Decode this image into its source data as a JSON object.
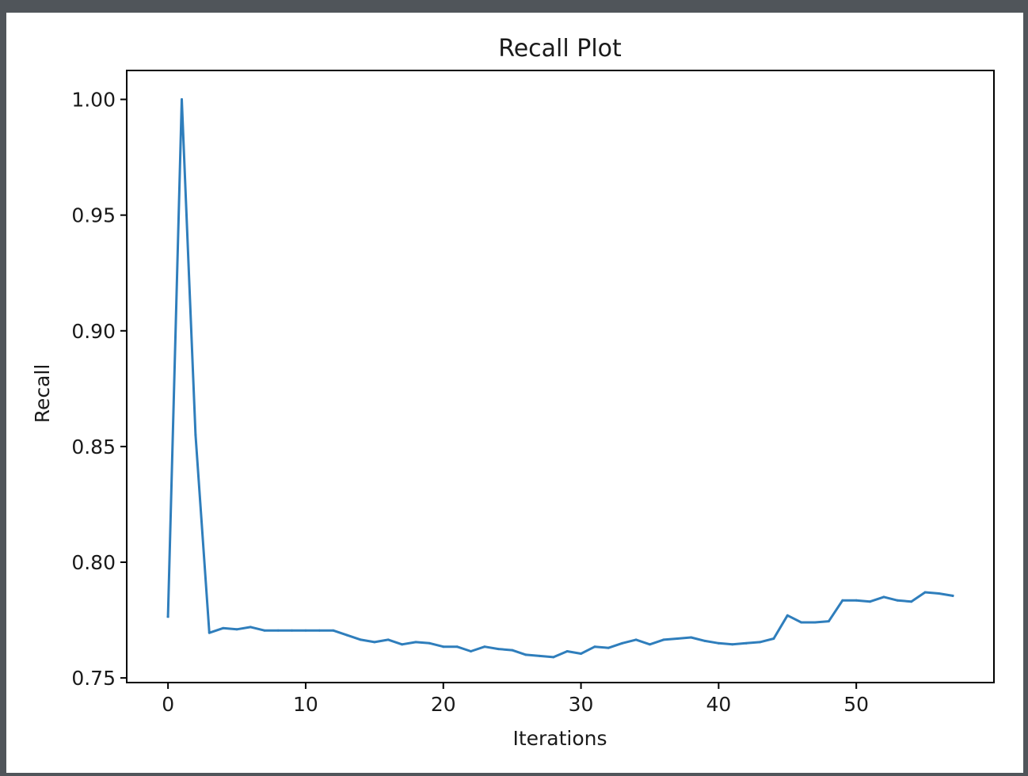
{
  "colors": {
    "background": "#50555a",
    "figure": "#ffffff",
    "line": "#2f7ebc",
    "axes": "#000000"
  },
  "chart_data": {
    "type": "line",
    "title": "Recall Plot",
    "xlabel": "Iterations",
    "ylabel": "Recall",
    "xlim": [
      -3.0,
      60.0
    ],
    "ylim": [
      0.748,
      1.0125
    ],
    "xticks": [
      0,
      10,
      20,
      30,
      40,
      50
    ],
    "xtick_labels": [
      "0",
      "10",
      "20",
      "30",
      "40",
      "50"
    ],
    "yticks": [
      0.75,
      0.8,
      0.85,
      0.9,
      0.95,
      1.0
    ],
    "ytick_labels": [
      "0.75",
      "0.80",
      "0.85",
      "0.90",
      "0.95",
      "1.00"
    ],
    "grid": false,
    "series": [
      {
        "x": [
          0,
          1,
          2,
          3,
          4,
          5,
          6,
          7,
          8,
          9,
          10,
          11,
          12,
          13,
          14,
          15,
          16,
          17,
          18,
          19,
          20,
          21,
          22,
          23,
          24,
          25,
          26,
          27,
          28,
          29,
          30,
          31,
          32,
          33,
          34,
          35,
          36,
          37,
          38,
          39,
          40,
          41,
          42,
          43,
          44,
          45,
          46,
          47,
          48,
          49,
          50,
          51,
          52,
          53,
          54,
          55,
          56,
          57
        ],
        "values": [
          0.7765,
          1.0,
          0.855,
          0.7695,
          0.7715,
          0.771,
          0.772,
          0.7705,
          0.7705,
          0.7705,
          0.7705,
          0.7705,
          0.7705,
          0.7685,
          0.7665,
          0.7655,
          0.7665,
          0.7645,
          0.7655,
          0.765,
          0.7635,
          0.7635,
          0.7615,
          0.7635,
          0.7625,
          0.762,
          0.76,
          0.7595,
          0.759,
          0.7615,
          0.7605,
          0.7635,
          0.763,
          0.765,
          0.7665,
          0.7645,
          0.7665,
          0.767,
          0.7675,
          0.766,
          0.765,
          0.7645,
          0.765,
          0.7655,
          0.767,
          0.777,
          0.774,
          0.774,
          0.7745,
          0.7835,
          0.7835,
          0.783,
          0.785,
          0.7835,
          0.783,
          0.787,
          0.7865,
          0.7855
        ]
      }
    ]
  }
}
